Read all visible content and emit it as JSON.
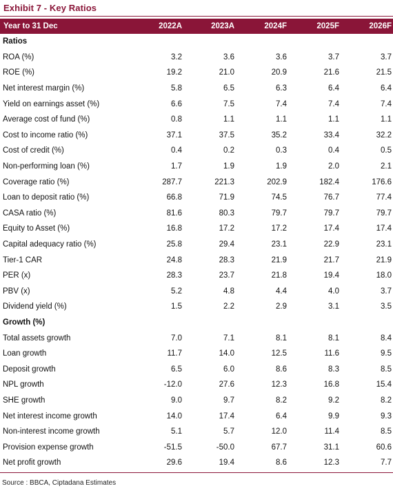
{
  "title": "Exhibit 7 - Key Ratios",
  "header": [
    "Year to 31 Dec",
    "2022A",
    "2023A",
    "2024F",
    "2025F",
    "2026F"
  ],
  "rows": [
    {
      "type": "section",
      "label": "Ratios"
    },
    {
      "type": "data",
      "label": "ROA (%)",
      "values": [
        "3.2",
        "3.6",
        "3.6",
        "3.7",
        "3.7"
      ]
    },
    {
      "type": "data",
      "label": "ROE (%)",
      "values": [
        "19.2",
        "21.0",
        "20.9",
        "21.6",
        "21.5"
      ]
    },
    {
      "type": "data",
      "label": "Net interest margin (%)",
      "values": [
        "5.8",
        "6.5",
        "6.3",
        "6.4",
        "6.4"
      ]
    },
    {
      "type": "data",
      "label": "Yield on earnings asset (%)",
      "values": [
        "6.6",
        "7.5",
        "7.4",
        "7.4",
        "7.4"
      ]
    },
    {
      "type": "data",
      "label": "Average cost of fund (%)",
      "values": [
        "0.8",
        "1.1",
        "1.1",
        "1.1",
        "1.1"
      ]
    },
    {
      "type": "data",
      "label": "Cost to income ratio (%)",
      "values": [
        "37.1",
        "37.5",
        "35.2",
        "33.4",
        "32.2"
      ]
    },
    {
      "type": "data",
      "label": "Cost of credit (%)",
      "values": [
        "0.4",
        "0.2",
        "0.3",
        "0.4",
        "0.5"
      ]
    },
    {
      "type": "data",
      "label": "Non-performing loan (%)",
      "values": [
        "1.7",
        "1.9",
        "1.9",
        "2.0",
        "2.1"
      ]
    },
    {
      "type": "data",
      "label": "Coverage ratio (%)",
      "values": [
        "287.7",
        "221.3",
        "202.9",
        "182.4",
        "176.6"
      ]
    },
    {
      "type": "data",
      "label": "Loan to deposit ratio (%)",
      "values": [
        "66.8",
        "71.9",
        "74.5",
        "76.7",
        "77.4"
      ]
    },
    {
      "type": "data",
      "label": "CASA ratio (%)",
      "values": [
        "81.6",
        "80.3",
        "79.7",
        "79.7",
        "79.7"
      ]
    },
    {
      "type": "data",
      "label": "Equity to Asset (%)",
      "values": [
        "16.8",
        "17.2",
        "17.2",
        "17.4",
        "17.4"
      ]
    },
    {
      "type": "data",
      "label": "Capital adequacy ratio (%)",
      "values": [
        "25.8",
        "29.4",
        "23.1",
        "22.9",
        "23.1"
      ]
    },
    {
      "type": "data",
      "label": "Tier-1 CAR",
      "values": [
        "24.8",
        "28.3",
        "21.9",
        "21.7",
        "21.9"
      ]
    },
    {
      "type": "data",
      "label": "PER (x)",
      "values": [
        "28.3",
        "23.7",
        "21.8",
        "19.4",
        "18.0"
      ]
    },
    {
      "type": "data",
      "label": "PBV (x)",
      "values": [
        "5.2",
        "4.8",
        "4.4",
        "4.0",
        "3.7"
      ]
    },
    {
      "type": "data",
      "label": "Dividend yield (%)",
      "values": [
        "1.5",
        "2.2",
        "2.9",
        "3.1",
        "3.5"
      ]
    },
    {
      "type": "section",
      "label": "Growth (%)"
    },
    {
      "type": "data",
      "label": "Total assets growth",
      "values": [
        "7.0",
        "7.1",
        "8.1",
        "8.1",
        "8.4"
      ]
    },
    {
      "type": "data",
      "label": "Loan growth",
      "values": [
        "11.7",
        "14.0",
        "12.5",
        "11.6",
        "9.5"
      ]
    },
    {
      "type": "data",
      "label": "Deposit growth",
      "values": [
        "6.5",
        "6.0",
        "8.6",
        "8.3",
        "8.5"
      ]
    },
    {
      "type": "data",
      "label": "NPL growth",
      "values": [
        "-12.0",
        "27.6",
        "12.3",
        "16.8",
        "15.4"
      ]
    },
    {
      "type": "data",
      "label": "SHE growth",
      "values": [
        "9.0",
        "9.7",
        "8.2",
        "9.2",
        "8.2"
      ]
    },
    {
      "type": "data",
      "label": "Net interest income growth",
      "values": [
        "14.0",
        "17.4",
        "6.4",
        "9.9",
        "9.3"
      ]
    },
    {
      "type": "data",
      "label": "Non-interest income growth",
      "values": [
        "5.1",
        "5.7",
        "12.0",
        "11.4",
        "8.5"
      ]
    },
    {
      "type": "data",
      "label": "Provision expense growth",
      "values": [
        "-51.5",
        "-50.0",
        "67.7",
        "31.1",
        "60.6"
      ]
    },
    {
      "type": "data",
      "label": "Net profit growth",
      "values": [
        "29.6",
        "19.4",
        "8.6",
        "12.3",
        "7.7"
      ]
    }
  ],
  "source": "Source : BBCA, Ciptadana Estimates",
  "colors": {
    "accent": "#8a1538"
  }
}
